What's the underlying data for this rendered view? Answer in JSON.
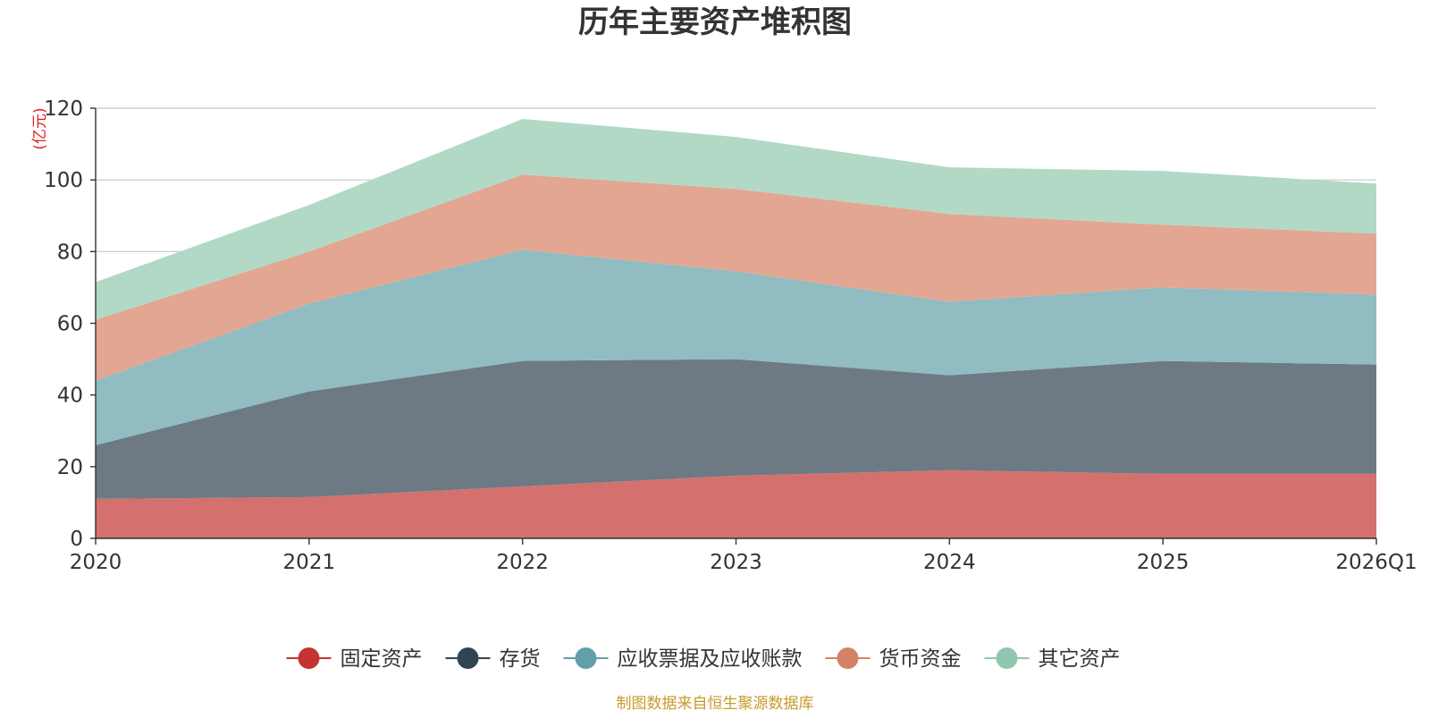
{
  "chart_data": {
    "type": "area",
    "stacked": true,
    "title": "历年主要资产堆积图",
    "ylabel": "(亿元)",
    "xlabel": "",
    "ylim": [
      0,
      120
    ],
    "yticks": [
      0,
      20,
      40,
      60,
      80,
      100,
      120
    ],
    "categories": [
      "2020",
      "2021",
      "2022",
      "2023",
      "2024",
      "2025",
      "2026Q1"
    ],
    "series": [
      {
        "name": "固定资产",
        "color": "#c23531",
        "fill": "#d4706e",
        "values": [
          11,
          11.5,
          14.5,
          17.5,
          19,
          18,
          18
        ]
      },
      {
        "name": "存货",
        "color": "#2f4554",
        "fill": "#6d7a84",
        "values": [
          15,
          29.5,
          35,
          32.5,
          26.5,
          31.5,
          30.5
        ]
      },
      {
        "name": "应收票据及应收账款",
        "color": "#61a0a8",
        "fill": "#91bcc1",
        "values": [
          18,
          24.5,
          31,
          24.5,
          20.5,
          20.5,
          19.5
        ]
      },
      {
        "name": "货币资金",
        "color": "#d48265",
        "fill": "#e3a692",
        "values": [
          17,
          14.5,
          21,
          23,
          24.5,
          17.5,
          17
        ]
      },
      {
        "name": "其它资产",
        "color": "#91c7ae",
        "fill": "#b2d9c6",
        "values": [
          10.5,
          13,
          15.5,
          14.5,
          13,
          15,
          14
        ]
      }
    ],
    "legend_position": "bottom-center",
    "grid": true
  },
  "footer": {
    "source": "制图数据来自恒生聚源数据库"
  }
}
